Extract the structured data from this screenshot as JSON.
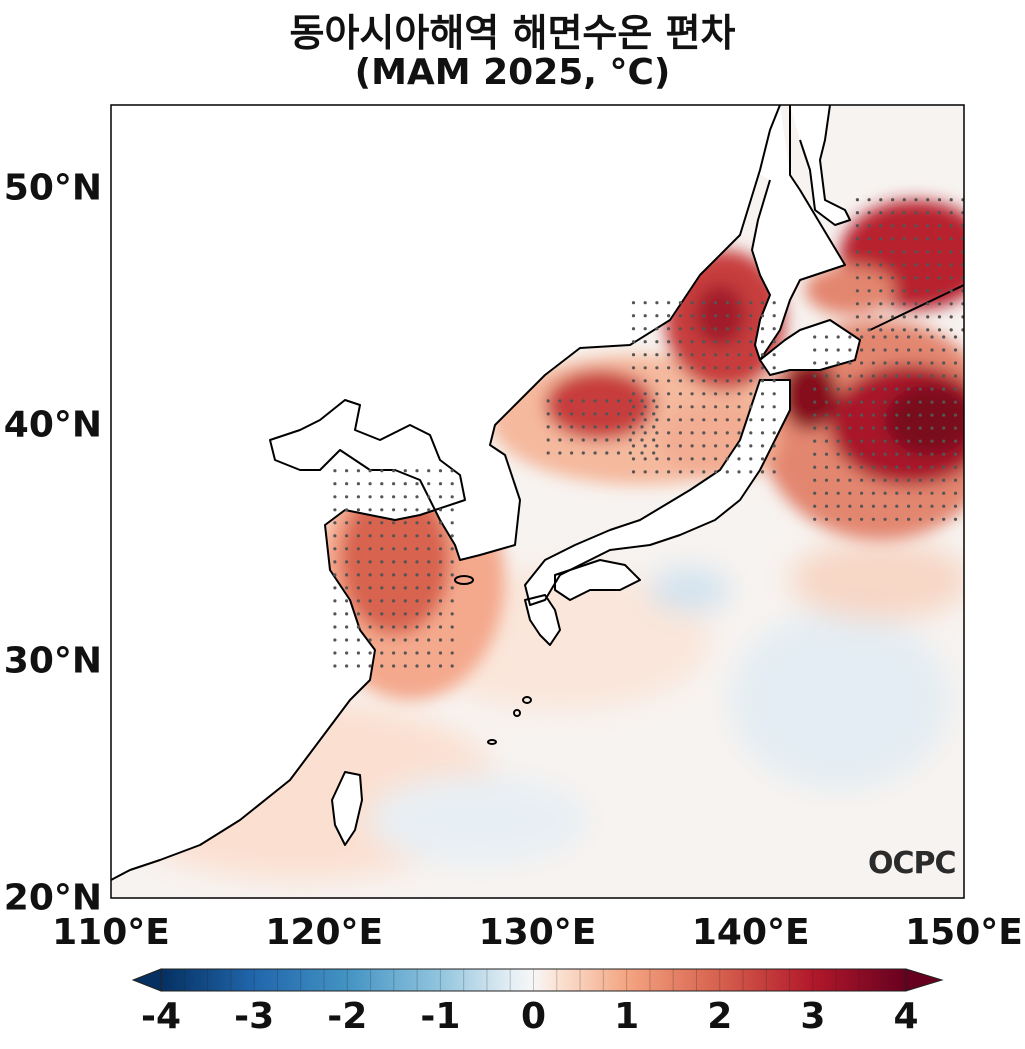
{
  "title": {
    "line1": "동아시아해역 해면수온 편차",
    "line2": "(MAM 2025, °C)"
  },
  "map": {
    "lon_range": [
      110,
      150
    ],
    "lat_range": [
      20,
      53.5
    ],
    "lat_ticks": [
      {
        "value": 50,
        "label": "50°N"
      },
      {
        "value": 40,
        "label": "40°N"
      },
      {
        "value": 30,
        "label": "30°N"
      },
      {
        "value": 20,
        "label": "20°N"
      }
    ],
    "lon_ticks": [
      {
        "value": 110,
        "label": "110°E"
      },
      {
        "value": 120,
        "label": "120°E"
      },
      {
        "value": 130,
        "label": "130°E"
      },
      {
        "value": 140,
        "label": "140°E"
      },
      {
        "value": 150,
        "label": "150°E"
      }
    ],
    "variable": "sea surface temperature anomaly",
    "stippling": "significant areas marked with dots",
    "logo_text": "OCPC"
  },
  "colorbar": {
    "min": -4,
    "max": 4,
    "ticks": [
      {
        "value": -4,
        "label": "-4"
      },
      {
        "value": -3,
        "label": "-3"
      },
      {
        "value": -2,
        "label": "-2"
      },
      {
        "value": -1,
        "label": "-1"
      },
      {
        "value": 0,
        "label": "0"
      },
      {
        "value": 1,
        "label": "1"
      },
      {
        "value": 2,
        "label": "2"
      },
      {
        "value": 3,
        "label": "3"
      },
      {
        "value": 4,
        "label": "4"
      }
    ],
    "colormap": "RdBu_r",
    "extend": "both"
  },
  "colors": {
    "strong_warm": "#8b0a1e",
    "warm": "#d6604d",
    "light_warm": "#fbd3bd",
    "neutral": "#f6f2ef",
    "light_cool": "#dbe9f2",
    "strong_cool": "#053061"
  }
}
